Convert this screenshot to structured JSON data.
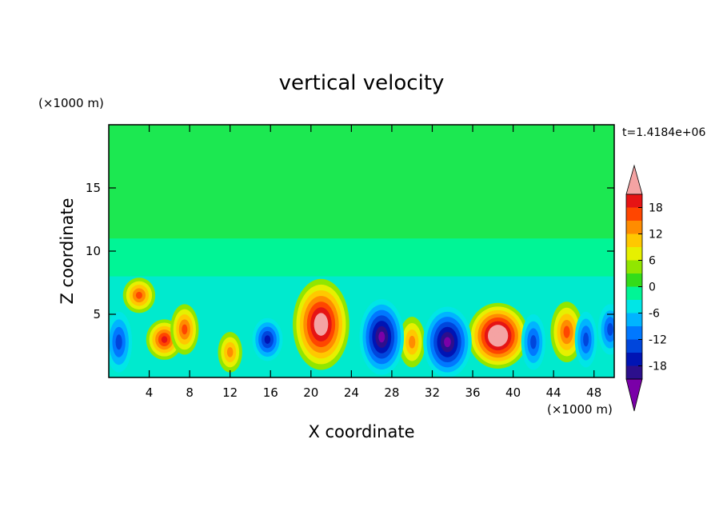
{
  "chart_data": {
    "type": "heatmap",
    "title": "vertical velocity",
    "time_label": "t=1.4184e+06",
    "xlabel": "X coordinate",
    "ylabel": "Z coordinate",
    "x_unit": "(×1000 m)",
    "y_unit": "(×1000 m)",
    "xlim": [
      0,
      50
    ],
    "ylim": [
      0,
      20
    ],
    "x_ticks": [
      4,
      8,
      12,
      16,
      20,
      24,
      28,
      32,
      36,
      40,
      44,
      48
    ],
    "y_ticks": [
      5,
      10,
      15
    ],
    "colorbar": {
      "levels": [
        -21,
        -18,
        -15,
        -12,
        -9,
        -6,
        -3,
        0,
        3,
        6,
        9,
        12,
        15,
        18,
        21
      ],
      "tick_labels": [
        18,
        12,
        6,
        0,
        -6,
        -12,
        -18
      ],
      "colors": [
        "#7a00a8",
        "#2c0f8c",
        "#0014b4",
        "#0046dc",
        "#0078ff",
        "#00b4ff",
        "#00e6e6",
        "#00f596",
        "#33dc1a",
        "#91e600",
        "#e6f000",
        "#ffc800",
        "#ff8c00",
        "#ff4600",
        "#e61414",
        "#f4a3a3"
      ],
      "extend": "both"
    },
    "cells": [
      {
        "x": 3,
        "z": 6.5,
        "w": 1.6,
        "h": 1.4
      },
      {
        "x": 5.5,
        "z": 3,
        "w": 1.8,
        "h": 1.6
      },
      {
        "x": 7.5,
        "z": 3.8,
        "w": 1.4,
        "h": 2
      },
      {
        "x": 12,
        "z": 2,
        "w": 1.2,
        "h": 1.6
      },
      {
        "x": 21,
        "z": 4.2,
        "w": 2.8,
        "h": 3.6
      },
      {
        "x": 30,
        "z": 2.8,
        "w": 1.3,
        "h": 2
      },
      {
        "x": 38.5,
        "z": 3.3,
        "w": 3,
        "h": 2.6
      },
      {
        "x": 45.3,
        "z": 3.6,
        "w": 1.6,
        "h": 2.4
      },
      {
        "x": 1,
        "z": 2.8,
        "w": -1.3,
        "h": 2.4
      },
      {
        "x": 15.7,
        "z": 3,
        "w": -1.5,
        "h": 1.7
      },
      {
        "x": 27,
        "z": 3.2,
        "w": -2.2,
        "h": 3
      },
      {
        "x": 33.5,
        "z": 2.8,
        "w": -2.4,
        "h": 2.8
      },
      {
        "x": 42,
        "z": 2.8,
        "w": -1.2,
        "h": 2.2
      },
      {
        "x": 47.2,
        "z": 3,
        "w": -1.1,
        "h": 2.2
      },
      {
        "x": 49.6,
        "z": 3.8,
        "w": -1.2,
        "h": 2
      }
    ]
  }
}
